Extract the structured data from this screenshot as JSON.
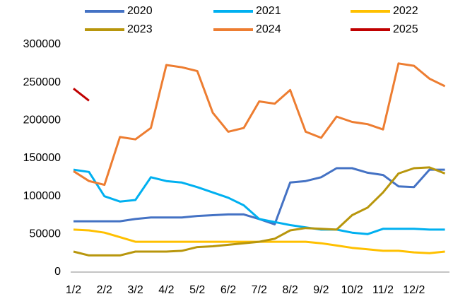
{
  "chart_data": {
    "type": "line",
    "categories": [
      "1/2",
      null,
      "2/2",
      null,
      "3/2",
      null,
      "4/2",
      null,
      "5/2",
      null,
      "6/2",
      null,
      "7/2",
      null,
      "8/2",
      null,
      "9/2",
      null,
      "10/2",
      null,
      "11/2",
      null,
      "12/2",
      null,
      null
    ],
    "series": [
      {
        "name": "2020",
        "color": "#4472c4",
        "values": [
          67000,
          67000,
          67000,
          67000,
          70000,
          72000,
          72000,
          72000,
          74000,
          75000,
          76000,
          76000,
          70000,
          63000,
          118000,
          120000,
          125000,
          137000,
          137000,
          131000,
          128000,
          113000,
          112000,
          135000,
          135000
        ]
      },
      {
        "name": "2021",
        "color": "#00b0f0",
        "values": [
          135000,
          132000,
          100000,
          93000,
          95000,
          125000,
          120000,
          118000,
          112000,
          105000,
          98000,
          88000,
          70000,
          66000,
          62000,
          59000,
          56000,
          56000,
          52000,
          50000,
          57000,
          57000,
          57000,
          56000,
          56000
        ]
      },
      {
        "name": "2022",
        "color": "#ffc000",
        "values": [
          56000,
          55000,
          52000,
          46000,
          40000,
          40000,
          40000,
          40000,
          40000,
          40000,
          40000,
          40000,
          40000,
          40000,
          40000,
          40000,
          38000,
          35000,
          32000,
          30000,
          28000,
          28000,
          26000,
          25000,
          27000
        ]
      },
      {
        "name": "2023",
        "color": "#b8960c",
        "values": [
          27000,
          22000,
          22000,
          22000,
          27000,
          27000,
          27000,
          28000,
          33000,
          34000,
          36000,
          38000,
          40000,
          44000,
          55000,
          58000,
          57000,
          56000,
          75000,
          85000,
          105000,
          130000,
          137000,
          138000,
          130000
        ]
      },
      {
        "name": "2024",
        "color": "#ed7d31",
        "values": [
          133000,
          120000,
          115000,
          178000,
          175000,
          190000,
          273000,
          270000,
          265000,
          210000,
          185000,
          190000,
          225000,
          222000,
          240000,
          185000,
          177000,
          205000,
          198000,
          195000,
          188000,
          275000,
          272000,
          255000,
          245000
        ]
      },
      {
        "name": "2025",
        "color": "#c00000",
        "values": [
          242000,
          226000,
          null,
          null,
          null,
          null,
          null,
          null,
          null,
          null,
          null,
          null,
          null,
          null,
          null,
          null,
          null,
          null,
          null,
          null,
          null,
          null,
          null,
          null,
          null
        ]
      }
    ],
    "ylim": [
      0,
      300000
    ],
    "yticks": [
      0,
      50000,
      100000,
      150000,
      200000,
      250000,
      300000
    ],
    "grid": false,
    "legend": "top"
  }
}
